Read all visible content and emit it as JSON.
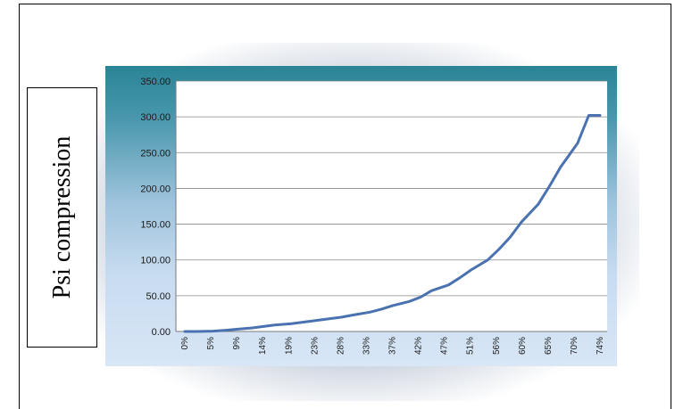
{
  "chart_data": {
    "type": "line",
    "title": "",
    "xlabel": "",
    "ylabel": "Psi compression",
    "ylim": [
      0,
      350
    ],
    "y_ticks": [
      "0.00",
      "50.00",
      "100.00",
      "150.00",
      "200.00",
      "250.00",
      "300.00",
      "350.00"
    ],
    "x_tick_labels": [
      "0%",
      "5%",
      "9%",
      "14%",
      "19%",
      "23%",
      "28%",
      "33%",
      "37%",
      "42%",
      "47%",
      "51%",
      "56%",
      "60%",
      "65%",
      "70%",
      "74%"
    ],
    "grid": true,
    "legend": "none",
    "series": [
      {
        "color": "#4a72b0",
        "x": [
          0,
          2,
          5,
          7,
          9,
          12,
          14,
          16,
          19,
          21,
          23,
          26,
          28,
          30,
          33,
          35,
          37,
          40,
          42,
          44,
          47,
          49,
          51,
          54,
          56,
          58,
          60,
          63,
          65,
          67,
          70,
          72,
          74
        ],
        "y": [
          0,
          0,
          0.5,
          1.5,
          3,
          5,
          7,
          9,
          11,
          13,
          15,
          18,
          20,
          23,
          27,
          31,
          36,
          42,
          48,
          57,
          65,
          75,
          86,
          100,
          115,
          132,
          153,
          178,
          203,
          230,
          263,
          302,
          302
        ]
      }
    ]
  },
  "colors": {
    "line": "#4a72b0",
    "gridline": "#8a8a8a",
    "plot_bg": "#ffffff"
  }
}
